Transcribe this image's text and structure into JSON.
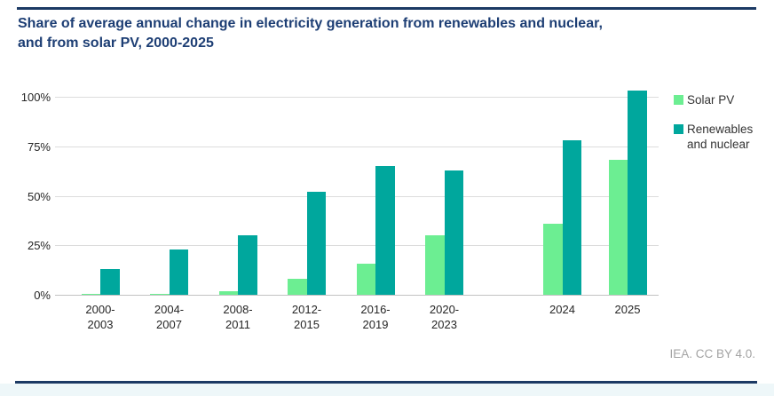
{
  "header": {
    "title": "Share of average annual change in electricity generation from renewables and nuclear, and from solar PV, 2000-2025",
    "title_line1": "Share of average annual change in electricity generation from renewables and nuclear,",
    "title_line2": "and from solar PV, 2000-2025"
  },
  "chart_data": {
    "type": "bar",
    "title": "Share of average annual change in electricity generation from renewables and nuclear, and from solar PV, 2000-2025",
    "categories": [
      "2000-2003",
      "2004-2007",
      "2008-2011",
      "2012-2015",
      "2016-2019",
      "2020-2023",
      "2024",
      "2025"
    ],
    "series": [
      {
        "name": "Solar PV",
        "color": "#6CEE92",
        "values": [
          0.3,
          0.5,
          2,
          8,
          15.5,
          30,
          36,
          68
        ]
      },
      {
        "name": "Renewables and nuclear",
        "color": "#00A79D",
        "values": [
          13,
          23,
          30,
          52,
          65,
          63,
          78,
          103
        ]
      }
    ],
    "xlabel": "",
    "ylabel": "",
    "y_ticks": [
      0,
      25,
      50,
      75,
      100
    ],
    "y_tick_labels": [
      "0%",
      "25%",
      "50%",
      "75%",
      "100%"
    ],
    "ylim": [
      0,
      105
    ],
    "grid": "horizontal",
    "legend_position": "top-right",
    "x_gap_after_category": "2020-2023"
  },
  "footer": {
    "attribution": "IEA. CC BY 4.0."
  },
  "colors": {
    "accent_navy": "#1d3e74",
    "grid": "#dcdcdc",
    "axis_line": "#c2c2c2",
    "footer_text": "#a3a3a3",
    "bottom_strip": "#eef7f9"
  }
}
